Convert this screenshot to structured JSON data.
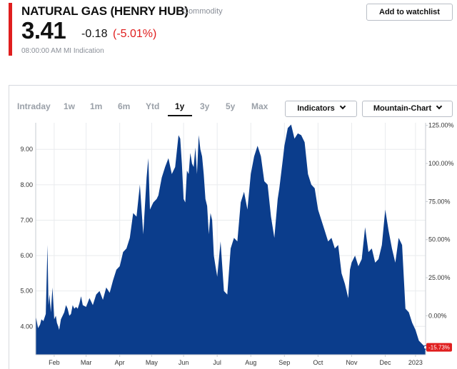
{
  "header": {
    "title": "NATURAL GAS (HENRY HUB)",
    "category": "Commodity",
    "price": "3.41",
    "change_abs": "-0.18",
    "change_pct": "(-5.01%)",
    "timestamp": "08:00:00 AM",
    "indication": "MI Indication",
    "watchlist_label": "Add to watchlist"
  },
  "colors": {
    "accent": "#e01e1e",
    "chart_fill": "#0b3d8c",
    "badge": "#e01e1e"
  },
  "range_tabs": [
    {
      "label": "Intraday",
      "active": false
    },
    {
      "label": "1w",
      "active": false
    },
    {
      "label": "1m",
      "active": false
    },
    {
      "label": "6m",
      "active": false
    },
    {
      "label": "Ytd",
      "active": false
    },
    {
      "label": "1y",
      "active": true
    },
    {
      "label": "3y",
      "active": false
    },
    {
      "label": "5y",
      "active": false
    },
    {
      "label": "Max",
      "active": false
    }
  ],
  "controls": {
    "indicators_label": "Indicators",
    "chart_type_label": "Mountain-Chart"
  },
  "chart_data": {
    "type": "area",
    "title": "",
    "xlabel": "",
    "ylabel": "",
    "left_axis": {
      "ticks": [
        "4.00",
        "5.00",
        "6.00",
        "7.00",
        "8.00",
        "9.00"
      ],
      "range": [
        3.2,
        9.75
      ]
    },
    "right_axis": {
      "ticks": [
        "0.00%",
        "25.00%",
        "50.00%",
        "75.00%",
        "100.00%",
        "125.00%"
      ]
    },
    "x_ticks": [
      "Feb",
      "Mar",
      "Apr",
      "May",
      "Jun",
      "Jul",
      "Aug",
      "Sep",
      "Oct",
      "Nov",
      "Dec",
      "2023"
    ],
    "x_tick_positions": [
      0.5,
      1.45,
      2.45,
      3.4,
      4.35,
      5.35,
      6.35,
      7.35,
      8.35,
      9.35,
      10.35,
      11.25
    ],
    "x_range": [
      -0.05,
      11.55
    ],
    "last_value_label": "-15.73%",
    "x": [
      -0.05,
      0.02,
      0.08,
      0.12,
      0.18,
      0.25,
      0.3,
      0.33,
      0.36,
      0.4,
      0.45,
      0.5,
      0.55,
      0.58,
      0.62,
      0.65,
      0.7,
      0.75,
      0.8,
      0.85,
      0.9,
      0.95,
      1.0,
      1.05,
      1.1,
      1.15,
      1.2,
      1.25,
      1.3,
      1.35,
      1.45,
      1.55,
      1.65,
      1.75,
      1.85,
      1.95,
      2.05,
      2.15,
      2.25,
      2.35,
      2.45,
      2.55,
      2.65,
      2.75,
      2.85,
      2.95,
      3.05,
      3.15,
      3.25,
      3.3,
      3.35,
      3.45,
      3.55,
      3.6,
      3.7,
      3.8,
      3.9,
      4.0,
      4.1,
      4.2,
      4.25,
      4.3,
      4.35,
      4.4,
      4.45,
      4.5,
      4.55,
      4.6,
      4.65,
      4.7,
      4.75,
      4.8,
      4.85,
      4.9,
      4.95,
      5.0,
      5.05,
      5.1,
      5.15,
      5.2,
      5.25,
      5.3,
      5.35,
      5.45,
      5.55,
      5.65,
      5.75,
      5.85,
      5.95,
      6.05,
      6.15,
      6.25,
      6.35,
      6.45,
      6.55,
      6.65,
      6.75,
      6.85,
      6.95,
      7.05,
      7.15,
      7.2,
      7.25,
      7.3,
      7.35,
      7.45,
      7.55,
      7.65,
      7.75,
      7.85,
      7.95,
      8.05,
      8.15,
      8.25,
      8.35,
      8.45,
      8.55,
      8.65,
      8.75,
      8.85,
      8.95,
      9.05,
      9.15,
      9.25,
      9.3,
      9.35,
      9.45,
      9.55,
      9.65,
      9.75,
      9.85,
      9.95,
      10.05,
      10.15,
      10.25,
      10.35,
      10.45,
      10.55,
      10.65,
      10.75,
      10.85,
      10.95,
      11.05,
      11.15,
      11.25,
      11.35,
      11.45,
      11.55
    ],
    "y": [
      4.3,
      3.95,
      4.05,
      4.2,
      4.15,
      4.35,
      6.3,
      4.6,
      4.9,
      4.4,
      5.1,
      4.2,
      4.3,
      4.1,
      4.0,
      3.9,
      4.2,
      4.3,
      4.4,
      4.6,
      4.5,
      4.3,
      4.35,
      4.6,
      4.5,
      4.55,
      4.5,
      4.65,
      4.85,
      4.6,
      4.55,
      4.8,
      4.6,
      4.9,
      5.0,
      4.75,
      5.1,
      4.95,
      5.3,
      5.6,
      5.7,
      6.1,
      6.2,
      6.5,
      7.2,
      7.1,
      8.0,
      6.6,
      8.2,
      8.75,
      7.3,
      7.5,
      7.6,
      7.7,
      8.2,
      8.5,
      8.75,
      8.3,
      8.5,
      9.4,
      9.3,
      8.6,
      7.6,
      7.5,
      8.4,
      8.3,
      8.9,
      8.6,
      8.5,
      9.05,
      8.3,
      9.4,
      9.0,
      8.8,
      8.3,
      7.6,
      7.4,
      6.6,
      7.2,
      7.0,
      6.0,
      5.7,
      5.4,
      6.4,
      5.0,
      4.9,
      6.2,
      6.5,
      6.4,
      7.5,
      7.8,
      7.3,
      8.3,
      8.8,
      9.1,
      8.8,
      8.1,
      8.0,
      7.1,
      6.5,
      7.6,
      7.9,
      8.3,
      8.7,
      9.1,
      9.6,
      9.7,
      9.3,
      9.45,
      9.4,
      9.2,
      8.3,
      8.0,
      7.9,
      7.3,
      7.0,
      6.7,
      6.4,
      6.5,
      6.2,
      6.3,
      5.5,
      5.2,
      4.8,
      5.6,
      5.8,
      6.0,
      5.7,
      5.9,
      6.8,
      6.1,
      6.2,
      5.8,
      5.9,
      6.3,
      7.3,
      6.7,
      6.2,
      5.8,
      6.5,
      6.3,
      4.5,
      4.4,
      4.1,
      3.9,
      3.6,
      3.5,
      3.41
    ]
  }
}
